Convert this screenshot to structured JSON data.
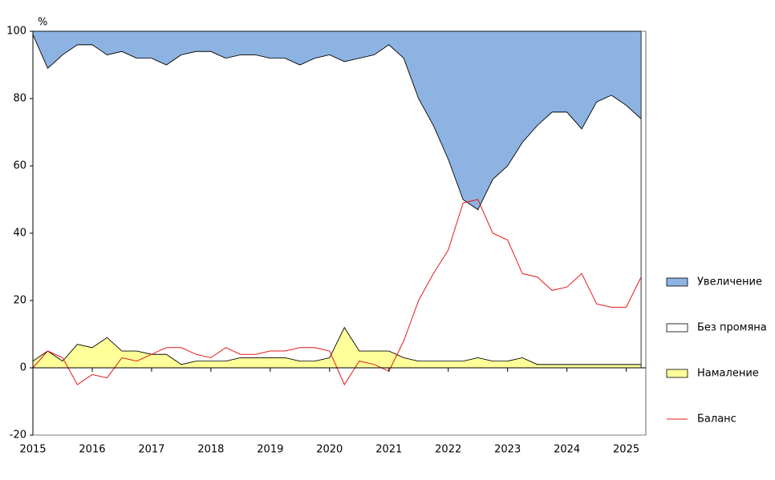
{
  "chart_data": {
    "type": "stacked_area_line",
    "y_unit_label": "%",
    "x": [
      2015,
      2015.25,
      2015.5,
      2015.75,
      2016,
      2016.25,
      2016.5,
      2016.75,
      2017,
      2017.25,
      2017.5,
      2017.75,
      2018,
      2018.25,
      2018.5,
      2018.75,
      2019,
      2019.25,
      2019.5,
      2019.75,
      2020,
      2020.25,
      2020.5,
      2020.75,
      2021,
      2021.25,
      2021.5,
      2021.75,
      2022,
      2022.25,
      2022.5,
      2022.75,
      2023,
      2023.25,
      2023.5,
      2023.75,
      2024,
      2024.25,
      2024.5,
      2024.75,
      2025,
      2025.25
    ],
    "series": [
      {
        "name": "Намаление",
        "color": "#ffff99",
        "kind": "area",
        "values": [
          2,
          5,
          2,
          7,
          6,
          9,
          5,
          5,
          4,
          4,
          1,
          2,
          2,
          2,
          3,
          3,
          3,
          3,
          2,
          2,
          3,
          12,
          5,
          5,
          5,
          3,
          2,
          2,
          2,
          2,
          3,
          2,
          2,
          3,
          1,
          1,
          1,
          1,
          1,
          1,
          1,
          1
        ]
      },
      {
        "name": "Без промяна",
        "color": "#ffffff",
        "kind": "area",
        "values": [
          97,
          84,
          91,
          89,
          90,
          84,
          89,
          87,
          88,
          86,
          92,
          92,
          92,
          90,
          90,
          90,
          89,
          89,
          88,
          90,
          90,
          79,
          87,
          88,
          91,
          89,
          78,
          70,
          60,
          48,
          44,
          54,
          58,
          64,
          71,
          75,
          75,
          70,
          78,
          80,
          77,
          73
        ]
      },
      {
        "name": "Увеличение",
        "color": "#8db3e2",
        "kind": "area",
        "values": [
          1,
          11,
          7,
          4,
          4,
          7,
          6,
          8,
          8,
          10,
          7,
          6,
          6,
          8,
          7,
          7,
          8,
          8,
          10,
          8,
          7,
          9,
          8,
          7,
          4,
          8,
          20,
          28,
          38,
          50,
          53,
          44,
          40,
          33,
          28,
          24,
          24,
          29,
          21,
          19,
          22,
          26
        ]
      },
      {
        "name": "Баланс",
        "color": "#e31a1c",
        "kind": "line",
        "values": [
          0,
          5,
          3,
          -5,
          -2,
          -3,
          3,
          2,
          4,
          6,
          6,
          4,
          3,
          6,
          4,
          4,
          5,
          5,
          6,
          6,
          5,
          -5,
          2,
          1,
          -1,
          8,
          20,
          28,
          35,
          49,
          50,
          40,
          38,
          28,
          27,
          23,
          24,
          28,
          19,
          18,
          18,
          27
        ]
      }
    ],
    "xlim": [
      2015,
      2025.33
    ],
    "xticks": [
      2015,
      2016,
      2017,
      2018,
      2019,
      2020,
      2021,
      2022,
      2023,
      2024,
      2025
    ],
    "ylim": [
      -20,
      100
    ],
    "yticks": [
      -20,
      0,
      20,
      40,
      60,
      80,
      100
    ]
  }
}
